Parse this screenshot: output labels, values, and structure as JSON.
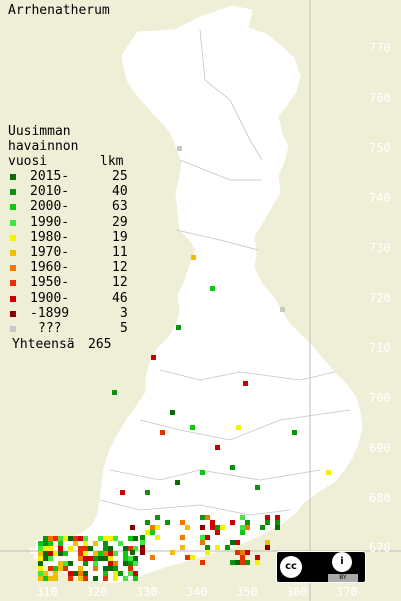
{
  "title": "Arrhenatherum",
  "legend": {
    "heading": [
      "Uusimman",
      "havainnon"
    ],
    "col_year": "vuosi",
    "col_count": "lkm",
    "rows": [
      {
        "label": "2015-",
        "count": "25",
        "color": "#0a6a0a"
      },
      {
        "label": "2010-",
        "count": "40",
        "color": "#0b930b"
      },
      {
        "label": "2000-",
        "count": "63",
        "color": "#12c712"
      },
      {
        "label": "1990-",
        "count": "29",
        "color": "#45e445"
      },
      {
        "label": "1980-",
        "count": "19",
        "color": "#f5f200"
      },
      {
        "label": "1970-",
        "count": "11",
        "color": "#f0c000"
      },
      {
        "label": "1960-",
        "count": "12",
        "color": "#f07a00"
      },
      {
        "label": "1950-",
        "count": "12",
        "color": "#e23200"
      },
      {
        "label": "1900-",
        "count": "46",
        "color": "#cc0000"
      },
      {
        "label": "-1899",
        "count": "3",
        "color": "#8a0000"
      },
      {
        "label": "???",
        "count": "5",
        "color": "#c8c8c8"
      }
    ],
    "total_label": "Yhteensä",
    "total_count": "265"
  },
  "y_axis_labels": [
    "770",
    "760",
    "750",
    "740",
    "730",
    "720",
    "710",
    "700",
    "690",
    "680",
    "670"
  ],
  "x_axis_labels": [
    "310",
    "320",
    "330",
    "340",
    "350",
    "360",
    "370"
  ],
  "license": {
    "cc": "cc",
    "by": "BY"
  }
}
